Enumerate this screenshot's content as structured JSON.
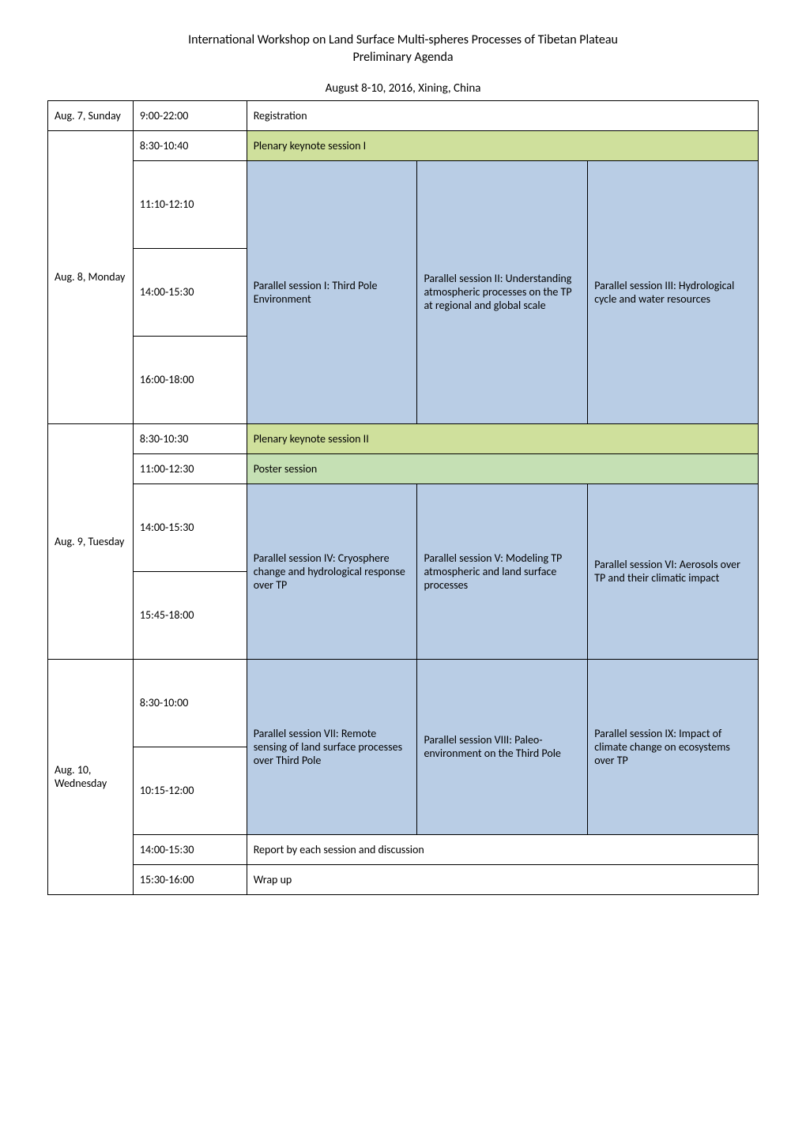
{
  "heading": {
    "line1": "International Workshop on Land Surface Multi-spheres Processes of Tibetan Plateau",
    "line2": "Preliminary Agenda",
    "caption": "August 8-10, 2016, Xining, China"
  },
  "days": {
    "sun": "Aug. 7, Sunday",
    "mon": "Aug. 8, Monday",
    "tue": "Aug. 9, Tuesday",
    "wed": "Aug. 10, Wednesday"
  },
  "times": {
    "sun_reg": "9:00-22:00",
    "mon_plenary": "8:30-10:40",
    "mon_s1": "11:10-12:10",
    "mon_s2": "14:00-15:30",
    "mon_s3": "16:00-18:00",
    "tue_plenary": "8:30-10:30",
    "tue_poster": "11:00-12:30",
    "tue_s1": "14:00-15:30",
    "tue_s2": "15:45-18:00",
    "wed_s1": "8:30-10:00",
    "wed_s2": "10:15-12:00",
    "wed_report": "14:00-15:30",
    "wed_wrap": "15:30-16:00"
  },
  "cells": {
    "registration": "Registration",
    "plenary1": "Plenary keynote session I",
    "plenary2": "Plenary keynote session II",
    "poster": "Poster session",
    "report": "Report by each session and discussion",
    "wrap": "Wrap up",
    "p1": "Parallel session I: Third Pole Environment",
    "p2": "Parallel session II: Understanding atmospheric processes on the TP at regional and global scale",
    "p3": "Parallel session III: Hydrological cycle and water resources",
    "p4": "Parallel session IV: Cryosphere change and hydrological response over TP",
    "p5": "Parallel session V: Modeling TP atmospheric and land surface processes",
    "p6": "Parallel session VI: Aerosols over TP and their climatic impact",
    "p7": "Parallel session VII: Remote sensing of land surface processes over Third Pole",
    "p8": "Parallel session VIII: Paleo-environment on the Third Pole",
    "p9": "Parallel session IX: Impact of climate change on ecosystems over TP"
  },
  "colors": {
    "plenary_bg": "#cfe09c",
    "parallel_bg": "#b9cde5",
    "poster_bg": "#c5e0b4",
    "border": "#000000",
    "page_bg": "#ffffff"
  }
}
